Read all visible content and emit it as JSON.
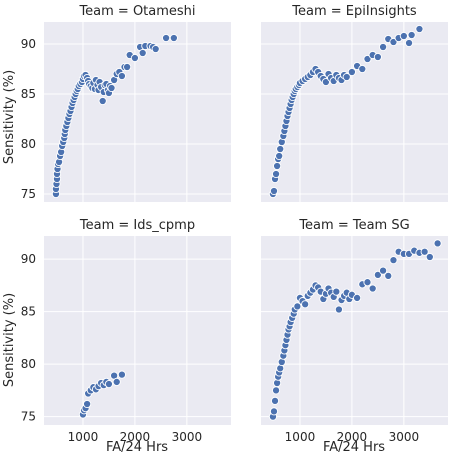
{
  "chart_data": {
    "type": "scatter",
    "facet": "Team",
    "xlabel": "FA/24 Hrs",
    "ylabel": "Sensitivity (%)",
    "xlim": [
      250,
      3850
    ],
    "ylim": [
      74.2,
      92.2
    ],
    "x_ticks": [
      1000,
      2000,
      3000
    ],
    "y_ticks": [
      75,
      80,
      85,
      90
    ],
    "grid": true,
    "point_color": "#4c72b0",
    "background_color": "#eaeaf2",
    "panels": [
      {
        "title": "Team = Otameshi",
        "points": [
          [
            480,
            75
          ],
          [
            480,
            75.5
          ],
          [
            490,
            76
          ],
          [
            500,
            76.5
          ],
          [
            500,
            77
          ],
          [
            510,
            77.5
          ],
          [
            520,
            78
          ],
          [
            540,
            78.2
          ],
          [
            560,
            78.8
          ],
          [
            580,
            79.2
          ],
          [
            600,
            79.8
          ],
          [
            620,
            80.2
          ],
          [
            640,
            80.6
          ],
          [
            650,
            81
          ],
          [
            660,
            81.4
          ],
          [
            680,
            81.8
          ],
          [
            700,
            82.2
          ],
          [
            720,
            82.6
          ],
          [
            740,
            83
          ],
          [
            760,
            83.3
          ],
          [
            780,
            83.7
          ],
          [
            800,
            84.1
          ],
          [
            820,
            84.4
          ],
          [
            840,
            84.7
          ],
          [
            860,
            85
          ],
          [
            880,
            85.3
          ],
          [
            900,
            85.5
          ],
          [
            920,
            85.8
          ],
          [
            950,
            86
          ],
          [
            980,
            86.2
          ],
          [
            1000,
            86.5
          ],
          [
            1020,
            86.8
          ],
          [
            1050,
            86.9
          ],
          [
            1080,
            86.6
          ],
          [
            1100,
            86.3
          ],
          [
            1120,
            86
          ],
          [
            1150,
            85.8
          ],
          [
            1180,
            85.6
          ],
          [
            1200,
            86.1
          ],
          [
            1230,
            85.5
          ],
          [
            1250,
            86.4
          ],
          [
            1280,
            85.9
          ],
          [
            1300,
            85.4
          ],
          [
            1320,
            86.2
          ],
          [
            1350,
            85.7
          ],
          [
            1380,
            84.3
          ],
          [
            1400,
            85.2
          ],
          [
            1420,
            85.9
          ],
          [
            1450,
            86
          ],
          [
            1480,
            85.4
          ],
          [
            1500,
            85.1
          ],
          [
            1520,
            85.8
          ],
          [
            1550,
            85.6
          ],
          [
            1600,
            86.4
          ],
          [
            1650,
            87
          ],
          [
            1700,
            87.2
          ],
          [
            1750,
            86.8
          ],
          [
            1800,
            87.7
          ],
          [
            1850,
            87.7
          ],
          [
            1900,
            88.9
          ],
          [
            2000,
            88.6
          ],
          [
            2100,
            89.7
          ],
          [
            2150,
            89.1
          ],
          [
            2200,
            89.8
          ],
          [
            2300,
            89.8
          ],
          [
            2350,
            89.7
          ],
          [
            2400,
            89.5
          ],
          [
            2600,
            90.6
          ],
          [
            2750,
            90.6
          ]
        ]
      },
      {
        "title": "Team = EpiInsights",
        "points": [
          [
            480,
            75
          ],
          [
            500,
            75.3
          ],
          [
            520,
            76.5
          ],
          [
            540,
            77
          ],
          [
            560,
            77.8
          ],
          [
            580,
            78.5
          ],
          [
            600,
            78.8
          ],
          [
            620,
            79.5
          ],
          [
            650,
            80.2
          ],
          [
            680,
            80.8
          ],
          [
            700,
            81.3
          ],
          [
            720,
            81.8
          ],
          [
            740,
            82.3
          ],
          [
            760,
            82.8
          ],
          [
            780,
            83.2
          ],
          [
            800,
            83.6
          ],
          [
            820,
            84
          ],
          [
            840,
            84.4
          ],
          [
            860,
            84.7
          ],
          [
            880,
            85
          ],
          [
            900,
            85.3
          ],
          [
            920,
            85.5
          ],
          [
            950,
            85.7
          ],
          [
            980,
            85.9
          ],
          [
            1000,
            86.1
          ],
          [
            1050,
            86.3
          ],
          [
            1100,
            86.5
          ],
          [
            1150,
            86.7
          ],
          [
            1200,
            86.9
          ],
          [
            1250,
            87.2
          ],
          [
            1300,
            87.5
          ],
          [
            1350,
            87.2
          ],
          [
            1400,
            86.8
          ],
          [
            1450,
            86.5
          ],
          [
            1500,
            86.2
          ],
          [
            1550,
            87
          ],
          [
            1600,
            86.6
          ],
          [
            1650,
            86.3
          ],
          [
            1700,
            86.9
          ],
          [
            1750,
            86.6
          ],
          [
            1800,
            86.4
          ],
          [
            1850,
            86.9
          ],
          [
            1900,
            86.7
          ],
          [
            2000,
            87.2
          ],
          [
            2100,
            87.8
          ],
          [
            2200,
            87.5
          ],
          [
            2300,
            88.5
          ],
          [
            2400,
            88.9
          ],
          [
            2500,
            88.7
          ],
          [
            2600,
            89.7
          ],
          [
            2700,
            90.5
          ],
          [
            2800,
            90.2
          ],
          [
            2900,
            90.6
          ],
          [
            3000,
            90.8
          ],
          [
            3100,
            90.1
          ],
          [
            3150,
            90.9
          ],
          [
            3300,
            91.5
          ]
        ]
      },
      {
        "title": "Team = Ids_cpmp",
        "points": [
          [
            1000,
            75.2
          ],
          [
            1020,
            75.6
          ],
          [
            1050,
            75.8
          ],
          [
            1080,
            76.2
          ],
          [
            1100,
            77.2
          ],
          [
            1150,
            77.5
          ],
          [
            1200,
            77.8
          ],
          [
            1250,
            77.6
          ],
          [
            1300,
            77.9
          ],
          [
            1350,
            78.2
          ],
          [
            1400,
            78
          ],
          [
            1450,
            78.3
          ],
          [
            1500,
            78.1
          ],
          [
            1600,
            78.9
          ],
          [
            1650,
            78.3
          ],
          [
            1750,
            79
          ]
        ]
      },
      {
        "title": "Team = Team SG",
        "points": [
          [
            480,
            75
          ],
          [
            500,
            75.5
          ],
          [
            520,
            76.5
          ],
          [
            540,
            77.5
          ],
          [
            560,
            78.2
          ],
          [
            580,
            78.8
          ],
          [
            600,
            79.2
          ],
          [
            620,
            79.6
          ],
          [
            650,
            80.2
          ],
          [
            680,
            80.8
          ],
          [
            700,
            81.3
          ],
          [
            720,
            81.8
          ],
          [
            740,
            82.3
          ],
          [
            760,
            82.8
          ],
          [
            780,
            83.3
          ],
          [
            800,
            83.6
          ],
          [
            820,
            84
          ],
          [
            850,
            84.4
          ],
          [
            880,
            84.8
          ],
          [
            900,
            85.2
          ],
          [
            950,
            85.5
          ],
          [
            1000,
            86.3
          ],
          [
            1050,
            86
          ],
          [
            1100,
            85.7
          ],
          [
            1150,
            86.5
          ],
          [
            1200,
            86.8
          ],
          [
            1250,
            87.1
          ],
          [
            1300,
            87.5
          ],
          [
            1350,
            87.3
          ],
          [
            1400,
            86.9
          ],
          [
            1450,
            86.2
          ],
          [
            1500,
            86.7
          ],
          [
            1550,
            87.2
          ],
          [
            1600,
            86.8
          ],
          [
            1650,
            86.4
          ],
          [
            1700,
            86.9
          ],
          [
            1750,
            85.2
          ],
          [
            1800,
            86.1
          ],
          [
            1850,
            86.5
          ],
          [
            1900,
            86.8
          ],
          [
            1950,
            86.2
          ],
          [
            2000,
            86.6
          ],
          [
            2100,
            86.3
          ],
          [
            2200,
            87.6
          ],
          [
            2300,
            87.8
          ],
          [
            2400,
            87.2
          ],
          [
            2500,
            88.5
          ],
          [
            2600,
            88.9
          ],
          [
            2700,
            88.4
          ],
          [
            2800,
            89.9
          ],
          [
            2900,
            90.7
          ],
          [
            3000,
            90.5
          ],
          [
            3100,
            90.5
          ],
          [
            3200,
            90.8
          ],
          [
            3300,
            90.6
          ],
          [
            3400,
            90.7
          ],
          [
            3500,
            90.2
          ],
          [
            3650,
            91.5
          ]
        ]
      }
    ]
  }
}
